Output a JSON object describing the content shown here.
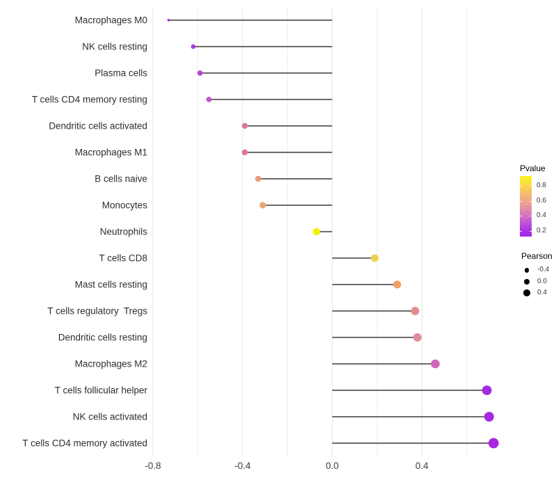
{
  "chart_data": {
    "type": "lollipop",
    "title": "",
    "xlabel": "",
    "ylabel": "",
    "legend_position": "right",
    "grid": true,
    "baseline": 0.0,
    "xlim": [
      -0.81,
      0.79
    ],
    "x_ticks": [
      {
        "label": "-0.8",
        "value": -0.8
      },
      {
        "label": "-0.4",
        "value": -0.4
      },
      {
        "label": "0.0",
        "value": 0.0
      },
      {
        "label": "0.4",
        "value": 0.4
      }
    ],
    "gridline_values": [
      -0.8,
      -0.6,
      -0.4,
      -0.2,
      0.0,
      0.2,
      0.4,
      0.6
    ],
    "series_encoding": {
      "color": "Pvalue",
      "size": "Pearson"
    },
    "points": [
      {
        "label": "Macrophages M0",
        "pearson": -0.73,
        "pvalue": 0.13,
        "color": "#9B2BE4",
        "radius": 1.8
      },
      {
        "label": "NK cells resting",
        "pearson": -0.62,
        "pvalue": 0.22,
        "color": "#AF3BD9",
        "radius": 3.3
      },
      {
        "label": "Plasma cells",
        "pearson": -0.59,
        "pvalue": 0.26,
        "color": "#B843D3",
        "radius": 3.8
      },
      {
        "label": "T cells CD4 memory resting",
        "pearson": -0.55,
        "pvalue": 0.3,
        "color": "#C253CB",
        "radius": 3.9
      },
      {
        "label": "Dendritic cells activated",
        "pearson": -0.39,
        "pvalue": 0.52,
        "color": "#DC7A96",
        "radius": 4.2
      },
      {
        "label": "Macrophages M1",
        "pearson": -0.39,
        "pvalue": 0.53,
        "color": "#DB7691",
        "radius": 4.2
      },
      {
        "label": "B cells naive",
        "pearson": -0.33,
        "pvalue": 0.63,
        "color": "#EC9C78",
        "radius": 4.4
      },
      {
        "label": "Monocytes",
        "pearson": -0.31,
        "pvalue": 0.66,
        "color": "#F0A56F",
        "radius": 4.6
      },
      {
        "label": "Neutrophils",
        "pearson": -0.07,
        "pvalue": 0.93,
        "color": "#F4F00E",
        "radius": 5.3
      },
      {
        "label": "T cells CD8",
        "pearson": 0.19,
        "pvalue": 0.8,
        "color": "#EFCF52",
        "radius": 5.4
      },
      {
        "label": "Mast cells resting",
        "pearson": 0.29,
        "pvalue": 0.67,
        "color": "#F0A266",
        "radius": 5.6
      },
      {
        "label": "T cells regulatory  Tregs",
        "pearson": 0.37,
        "pvalue": 0.57,
        "color": "#E28D92",
        "radius": 6.0
      },
      {
        "label": "Dendritic cells resting",
        "pearson": 0.38,
        "pvalue": 0.55,
        "color": "#E18B99",
        "radius": 6.0
      },
      {
        "label": "Macrophages M2",
        "pearson": 0.46,
        "pvalue": 0.42,
        "color": "#CE66BA",
        "radius": 6.3
      },
      {
        "label": "T cells follicular helper",
        "pearson": 0.69,
        "pvalue": 0.17,
        "color": "#A42CDF",
        "radius": 6.9
      },
      {
        "label": "NK cells activated",
        "pearson": 0.7,
        "pvalue": 0.17,
        "color": "#A52BE0",
        "radius": 7.0
      },
      {
        "label": "T cells CD4 memory activated",
        "pearson": 0.72,
        "pvalue": 0.15,
        "color": "#AA28E2",
        "radius": 7.4
      }
    ]
  },
  "legend_pvalue": {
    "title": "Pvalue",
    "ticks": [
      "0.8",
      "0.6",
      "0.4",
      "0.2"
    ],
    "gradient_stops": [
      "#FCF423",
      "#F8DA48",
      "#F3BE6E",
      "#ECA48E",
      "#E086AE",
      "#CB63CC",
      "#B13BE0",
      "#9D24E9"
    ]
  },
  "legend_pearson": {
    "title": "Pearson",
    "dot_color": "#000000",
    "keys": [
      {
        "label": "-0.4",
        "radius": 3.3
      },
      {
        "label": "0.0",
        "radius": 4.1
      },
      {
        "label": "0.4",
        "radius": 4.9
      }
    ]
  },
  "style": {
    "background": "#FFFFFF",
    "stem_color": "#3A3A3A",
    "grid_major_color": "#E3E3E3",
    "grid_minor_color": "#EFEFEF",
    "axis_text_color": "#3D3D3D"
  }
}
